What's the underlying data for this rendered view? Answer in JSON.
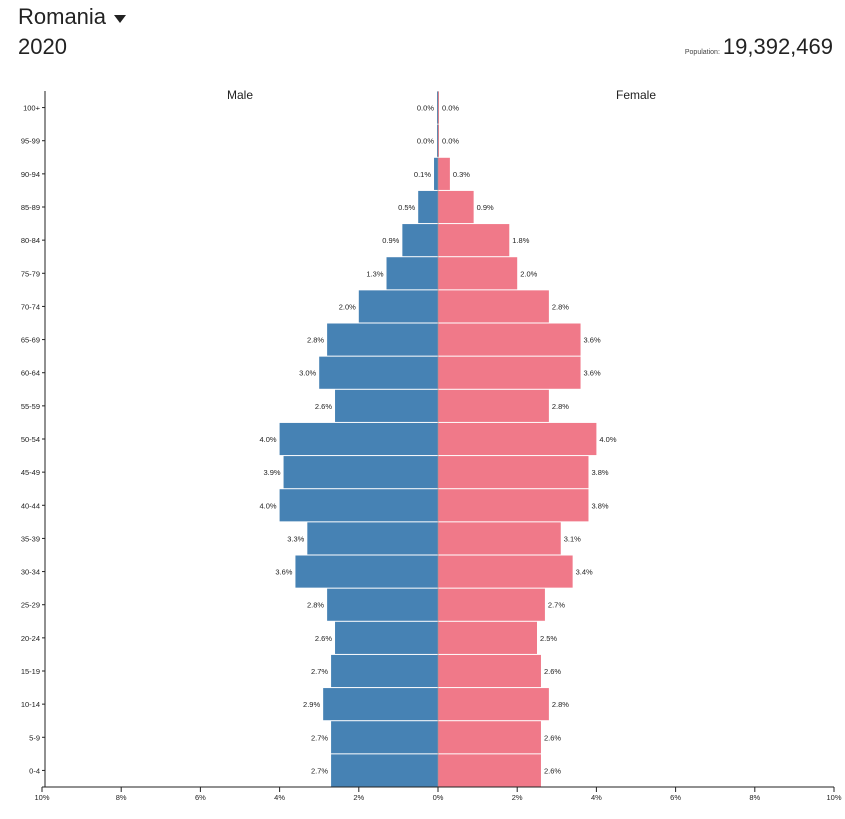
{
  "header": {
    "country": "Romania",
    "year": "2020",
    "population_label": "Population:",
    "population_value": "19,392,469"
  },
  "colors": {
    "male": "#4682b4",
    "female": "#f07989"
  },
  "chart_data": {
    "type": "bar",
    "orientation": "horizontal-diverging",
    "series": [
      {
        "name": "Male",
        "values": [
          0.0,
          0.0,
          0.1,
          0.5,
          0.9,
          1.3,
          2.0,
          2.8,
          3.0,
          2.6,
          4.0,
          3.9,
          4.0,
          3.3,
          3.6,
          2.8,
          2.6,
          2.7,
          2.9,
          2.7,
          2.7
        ]
      },
      {
        "name": "Female",
        "values": [
          0.0,
          0.0,
          0.3,
          0.9,
          1.8,
          2.0,
          2.8,
          3.6,
          3.6,
          2.8,
          4.0,
          3.8,
          3.8,
          3.1,
          3.4,
          2.7,
          2.5,
          2.6,
          2.8,
          2.6,
          2.6
        ]
      }
    ],
    "categories": [
      "100+",
      "95-99",
      "90-94",
      "85-89",
      "80-84",
      "75-79",
      "70-74",
      "65-69",
      "60-64",
      "55-59",
      "50-54",
      "45-49",
      "40-44",
      "35-39",
      "30-34",
      "25-29",
      "20-24",
      "15-19",
      "10-14",
      "5-9",
      "0-4"
    ],
    "value_labels": {
      "male": [
        "0.0%",
        "0.0%",
        "0.1%",
        "0.5%",
        "0.9%",
        "1.3%",
        "2.0%",
        "2.8%",
        "3.0%",
        "2.6%",
        "4.0%",
        "3.9%",
        "4.0%",
        "3.3%",
        "3.6%",
        "2.8%",
        "2.6%",
        "2.7%",
        "2.9%",
        "2.7%",
        "2.7%"
      ],
      "female": [
        "0.0%",
        "0.0%",
        "0.3%",
        "0.9%",
        "1.8%",
        "2.0%",
        "2.8%",
        "3.6%",
        "3.6%",
        "2.8%",
        "4.0%",
        "3.8%",
        "3.8%",
        "3.1%",
        "3.4%",
        "2.7%",
        "2.5%",
        "2.6%",
        "2.8%",
        "2.6%",
        "2.6%"
      ]
    },
    "xlim": [
      -10,
      10
    ],
    "xticks": [
      "10%",
      "8%",
      "6%",
      "4%",
      "2%",
      "0%",
      "2%",
      "4%",
      "6%",
      "8%",
      "10%"
    ],
    "xtick_values": [
      -10,
      -8,
      -6,
      -4,
      -2,
      0,
      2,
      4,
      6,
      8,
      10
    ],
    "grid": false,
    "legend": "top (series names above each half)"
  }
}
